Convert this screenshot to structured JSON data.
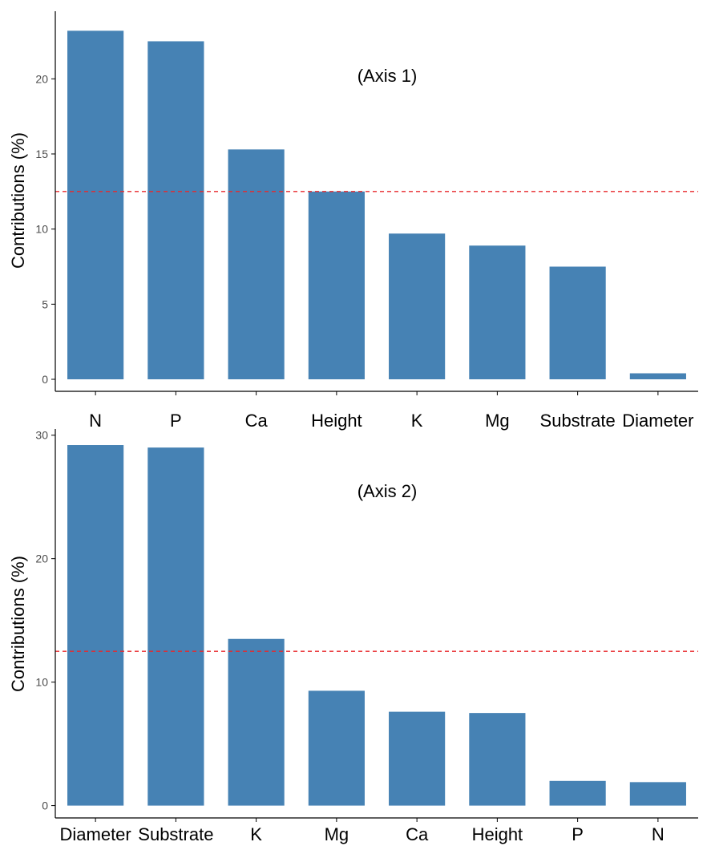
{
  "colors": {
    "bar": "#4682b4",
    "reference_line": "#e8282b"
  },
  "chart_data": [
    {
      "type": "bar",
      "title": "(Axis 1)",
      "xlabel": "",
      "ylabel": "Contributions (%)",
      "categories": [
        "N",
        "P",
        "Ca",
        "Height",
        "K",
        "Mg",
        "Substrate",
        "Diameter"
      ],
      "values": [
        23.2,
        22.5,
        15.3,
        12.5,
        9.7,
        8.9,
        7.5,
        0.4
      ],
      "yticks": [
        0,
        5,
        10,
        15,
        20
      ],
      "ylim": [
        -0.8,
        24.5
      ],
      "reference_line": 12.5,
      "grid": false,
      "legend": "none"
    },
    {
      "type": "bar",
      "title": "(Axis 2)",
      "xlabel": "",
      "ylabel": "Contributions (%)",
      "categories": [
        "Diameter",
        "Substrate",
        "K",
        "Mg",
        "Ca",
        "Height",
        "P",
        "N"
      ],
      "values": [
        29.2,
        29.0,
        13.5,
        9.3,
        7.6,
        7.5,
        2.0,
        1.9
      ],
      "yticks": [
        0,
        10,
        20,
        30
      ],
      "ylim": [
        -1.0,
        30.5
      ],
      "reference_line": 12.5,
      "grid": false,
      "legend": "none"
    }
  ]
}
